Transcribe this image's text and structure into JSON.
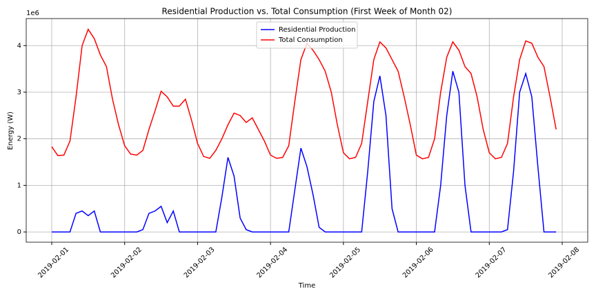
{
  "chart_data": {
    "type": "line",
    "title": "Residential Production vs. Total Consumption (First Week of Month 02)",
    "xlabel": "Time",
    "ylabel": "Energy (W)",
    "y_offset_label": "1e6",
    "x": [
      0,
      2,
      4,
      6,
      8,
      10,
      12,
      14,
      16,
      18,
      20,
      22,
      24,
      26,
      28,
      30,
      32,
      34,
      36,
      38,
      40,
      42,
      44,
      46,
      48,
      50,
      52,
      54,
      56,
      58,
      60,
      62,
      64,
      66,
      68,
      70,
      72,
      74,
      76,
      78,
      80,
      82,
      84,
      86,
      88,
      90,
      92,
      94,
      96,
      98,
      100,
      102,
      104,
      106,
      108,
      110,
      112,
      114,
      116,
      118,
      120,
      122,
      124,
      126,
      128,
      130,
      132,
      134,
      136,
      138,
      140,
      142,
      144,
      146,
      148,
      150,
      152,
      154,
      156,
      158,
      160,
      162,
      164,
      166
    ],
    "series": [
      {
        "name": "Residential Production",
        "color": "#0000ff",
        "values": [
          0,
          0,
          0,
          0,
          0.4,
          0.45,
          0.35,
          0.45,
          0,
          0,
          0,
          0,
          0,
          0,
          0,
          0.05,
          0.4,
          0.45,
          0.55,
          0.2,
          0.45,
          0,
          0,
          0,
          0,
          0,
          0,
          0,
          0.75,
          1.6,
          1.2,
          0.3,
          0.05,
          0,
          0,
          0,
          0,
          0,
          0,
          0,
          0.9,
          1.8,
          1.4,
          0.8,
          0.1,
          0,
          0,
          0,
          0,
          0,
          0,
          0,
          1.3,
          2.8,
          3.35,
          2.5,
          0.5,
          0,
          0,
          0,
          0,
          0,
          0,
          0,
          1.0,
          2.5,
          3.45,
          3.0,
          1.0,
          0,
          0,
          0,
          0,
          0,
          0,
          0.05,
          1.3,
          3.0,
          3.4,
          2.9,
          1.4,
          0,
          0,
          0
        ]
      },
      {
        "name": "Total Consumption",
        "color": "#ff0000",
        "values": [
          1.83,
          1.64,
          1.65,
          1.95,
          2.9,
          4.0,
          4.35,
          4.15,
          3.8,
          3.55,
          2.85,
          2.3,
          1.85,
          1.67,
          1.65,
          1.75,
          2.2,
          2.6,
          3.02,
          2.9,
          2.7,
          2.7,
          2.85,
          2.4,
          1.9,
          1.62,
          1.58,
          1.75,
          2.0,
          2.3,
          2.55,
          2.5,
          2.35,
          2.45,
          2.2,
          1.95,
          1.65,
          1.58,
          1.6,
          1.85,
          2.8,
          3.7,
          4.05,
          3.9,
          3.7,
          3.45,
          3.0,
          2.3,
          1.7,
          1.57,
          1.6,
          1.9,
          2.8,
          3.7,
          4.08,
          3.95,
          3.7,
          3.45,
          2.9,
          2.3,
          1.65,
          1.57,
          1.6,
          2.0,
          3.0,
          3.75,
          4.08,
          3.9,
          3.55,
          3.4,
          2.9,
          2.2,
          1.7,
          1.57,
          1.6,
          1.9,
          2.9,
          3.7,
          4.1,
          4.05,
          3.75,
          3.55,
          2.9,
          2.2
        ]
      }
    ],
    "xlim": [
      -8.4,
      176.4
    ],
    "xticks": [
      {
        "value": 0,
        "label": "2019-02-01"
      },
      {
        "value": 24,
        "label": "2019-02-02"
      },
      {
        "value": 48,
        "label": "2019-02-03"
      },
      {
        "value": 72,
        "label": "2019-02-04"
      },
      {
        "value": 96,
        "label": "2019-02-05"
      },
      {
        "value": 120,
        "label": "2019-02-06"
      },
      {
        "value": 144,
        "label": "2019-02-07"
      },
      {
        "value": 168,
        "label": "2019-02-08"
      }
    ],
    "ylim": [
      -0.22,
      4.58
    ],
    "yticks": [
      0,
      1,
      2,
      3,
      4
    ],
    "grid": true,
    "legend": "upper center"
  }
}
